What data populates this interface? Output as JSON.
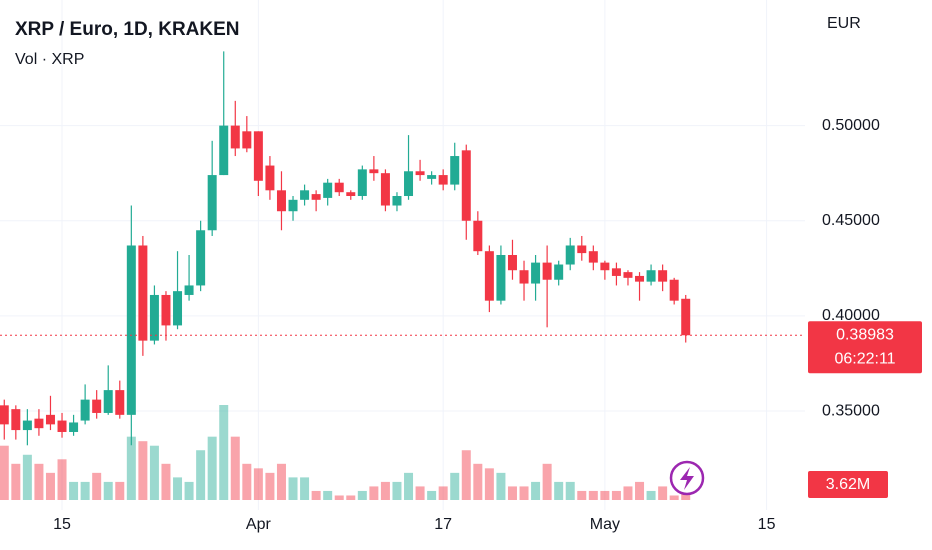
{
  "chart_data": {
    "type": "candlestick",
    "title": "XRP / Euro, 1D, KRAKEN",
    "currency": "EUR",
    "countdown": "06:22:11",
    "up_color": "#22ab94",
    "down_color": "#f23645",
    "grid": true,
    "categories": [
      null,
      null,
      null,
      null,
      null,
      "15",
      null,
      null,
      null,
      null,
      null,
      null,
      null,
      null,
      null,
      null,
      null,
      null,
      null,
      null,
      null,
      null,
      "Apr",
      null,
      null,
      null,
      null,
      null,
      null,
      null,
      null,
      null,
      null,
      null,
      null,
      null,
      null,
      null,
      "17",
      null,
      null,
      null,
      null,
      null,
      null,
      null,
      null,
      null,
      null,
      null,
      null,
      null,
      "May",
      null,
      null,
      null,
      null,
      null,
      null,
      null,
      null,
      null,
      null,
      null,
      null,
      null,
      "15",
      null,
      null,
      null
    ],
    "open": [
      0.353,
      0.351,
      0.34,
      0.346,
      0.348,
      0.345,
      0.339,
      0.345,
      0.356,
      0.349,
      0.361,
      0.348,
      0.437,
      0.387,
      0.411,
      0.395,
      0.411,
      0.416,
      0.445,
      0.474,
      0.5,
      0.497,
      0.497,
      0.479,
      0.466,
      0.455,
      0.461,
      0.464,
      0.462,
      0.47,
      0.465,
      0.463,
      0.477,
      0.475,
      0.458,
      0.463,
      0.476,
      0.472,
      0.474,
      0.469,
      0.487,
      0.45,
      0.434,
      0.408,
      0.432,
      0.424,
      0.417,
      0.428,
      0.419,
      0.427,
      0.437,
      0.434,
      0.428,
      0.425,
      0.423,
      0.421,
      0.418,
      0.424,
      0.419,
      0.409,
      null,
      null,
      null,
      null,
      null,
      null,
      null,
      null,
      null,
      null
    ],
    "high": [
      0.356,
      0.353,
      0.351,
      0.351,
      0.358,
      0.349,
      0.348,
      0.364,
      0.361,
      0.374,
      0.366,
      0.458,
      0.442,
      0.416,
      0.413,
      0.434,
      0.432,
      0.45,
      0.492,
      0.539,
      0.513,
      0.505,
      0.497,
      0.484,
      0.476,
      0.463,
      0.469,
      0.466,
      0.472,
      0.472,
      0.466,
      0.479,
      0.484,
      0.477,
      0.465,
      0.495,
      0.482,
      0.476,
      0.477,
      0.491,
      0.49,
      0.455,
      0.437,
      0.437,
      0.44,
      0.429,
      0.432,
      0.437,
      0.429,
      0.441,
      0.442,
      0.437,
      0.429,
      0.428,
      0.424,
      0.423,
      0.427,
      0.427,
      0.42,
      0.411,
      null,
      null,
      null,
      null,
      null,
      null,
      null,
      null,
      null,
      null
    ],
    "low": [
      0.335,
      0.335,
      0.332,
      0.337,
      0.34,
      0.336,
      0.337,
      0.343,
      0.346,
      0.348,
      0.346,
      0.332,
      0.379,
      0.385,
      0.387,
      0.393,
      0.408,
      0.413,
      0.442,
      0.474,
      0.484,
      0.486,
      0.463,
      0.461,
      0.445,
      0.45,
      0.458,
      0.455,
      0.458,
      0.463,
      0.461,
      0.461,
      0.471,
      0.455,
      0.455,
      0.461,
      0.471,
      0.469,
      0.466,
      0.466,
      0.44,
      0.432,
      0.402,
      0.406,
      0.419,
      0.408,
      0.408,
      0.394,
      0.416,
      0.424,
      0.429,
      0.424,
      0.419,
      0.416,
      0.416,
      0.408,
      0.416,
      0.413,
      0.406,
      0.386,
      null,
      null,
      null,
      null,
      null,
      null,
      null,
      null,
      null,
      null
    ],
    "close": [
      0.343,
      0.34,
      0.345,
      0.341,
      0.343,
      0.339,
      0.344,
      0.356,
      0.349,
      0.361,
      0.348,
      0.437,
      0.387,
      0.411,
      0.395,
      0.413,
      0.416,
      0.445,
      0.474,
      0.5,
      0.488,
      0.488,
      0.471,
      0.466,
      0.455,
      0.461,
      0.466,
      0.461,
      0.47,
      0.465,
      0.463,
      0.477,
      0.475,
      0.458,
      0.463,
      0.476,
      0.474,
      0.474,
      0.469,
      0.484,
      0.45,
      0.434,
      0.408,
      0.432,
      0.424,
      0.417,
      0.428,
      0.419,
      0.427,
      0.437,
      0.433,
      0.428,
      0.424,
      0.421,
      0.42,
      0.418,
      0.424,
      0.418,
      0.408,
      0.38983,
      null,
      null,
      null,
      null,
      null,
      null,
      null,
      null,
      null,
      null
    ],
    "volume": {
      "name": "Vol · XRP",
      "values": [
        12,
        8,
        10,
        8,
        6,
        9,
        4,
        4,
        6,
        4,
        4,
        14,
        13,
        12,
        8,
        5,
        4,
        11,
        14,
        21,
        14,
        8,
        7,
        6,
        8,
        5,
        5,
        2,
        2,
        1,
        1,
        2,
        3,
        4,
        4,
        6,
        3,
        2,
        3,
        6,
        11,
        8,
        7,
        6,
        3,
        3,
        4,
        8,
        4,
        4,
        2,
        2,
        2,
        2,
        3,
        4,
        2,
        3,
        1,
        3.62,
        null,
        null,
        null,
        null,
        null,
        null,
        null,
        null,
        null,
        null
      ],
      "value_labels": [
        null,
        null,
        null,
        null,
        null,
        null,
        null,
        null,
        null,
        null,
        null,
        null,
        null,
        null,
        null,
        null,
        null,
        null,
        null,
        null,
        null,
        null,
        null,
        null,
        null,
        null,
        null,
        null,
        null,
        null,
        null,
        null,
        null,
        null,
        null,
        null,
        null,
        null,
        null,
        null,
        null,
        null,
        null,
        null,
        null,
        null,
        null,
        null,
        null,
        null,
        null,
        null,
        null,
        null,
        null,
        null,
        null,
        null,
        null,
        "3.62M",
        null,
        null,
        null,
        null,
        null,
        null,
        null,
        null,
        null,
        null
      ]
    },
    "ylim": [
      0.298,
      0.566
    ],
    "yticks": [
      {
        "value": 0.35,
        "label": "0.35000"
      },
      {
        "value": 0.4,
        "label": "0.40000"
      },
      {
        "value": 0.45,
        "label": "0.45000"
      },
      {
        "value": 0.5,
        "label": "0.50000"
      }
    ]
  }
}
